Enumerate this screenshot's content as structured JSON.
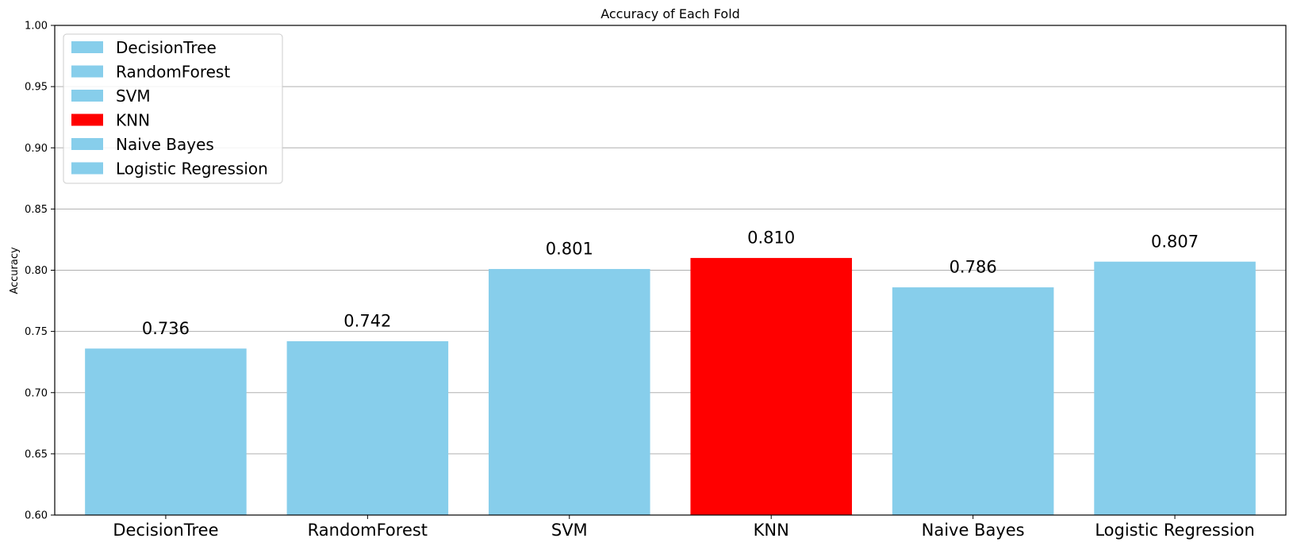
{
  "chart_data": {
    "type": "bar",
    "title": "Accuracy of Each Fold",
    "xlabel": "",
    "ylabel": "Accuracy",
    "categories": [
      "DecisionTree",
      "RandomForest",
      "SVM",
      "KNN",
      "Naive Bayes",
      "Logistic Regression"
    ],
    "values": [
      0.736,
      0.742,
      0.801,
      0.81,
      0.786,
      0.807
    ],
    "value_labels": [
      "0.736",
      "0.742",
      "0.801",
      "0.810",
      "0.786",
      "0.807"
    ],
    "bar_colors": [
      "#87ceeb",
      "#87ceeb",
      "#87ceeb",
      "#ff0000",
      "#87ceeb",
      "#87ceeb"
    ],
    "ylim": [
      0.6,
      1.0
    ],
    "yticks": [
      0.6,
      0.65,
      0.7,
      0.75,
      0.8,
      0.85,
      0.9,
      0.95,
      1.0
    ],
    "ytick_labels": [
      "0.60",
      "0.65",
      "0.70",
      "0.75",
      "0.80",
      "0.85",
      "0.90",
      "0.95",
      "1.00"
    ],
    "grid": "horizontal",
    "legend": {
      "placement": "top-left",
      "entries": [
        "DecisionTree",
        "RandomForest",
        "SVM",
        "KNN",
        "Naive Bayes",
        "Logistic Regression"
      ]
    }
  }
}
